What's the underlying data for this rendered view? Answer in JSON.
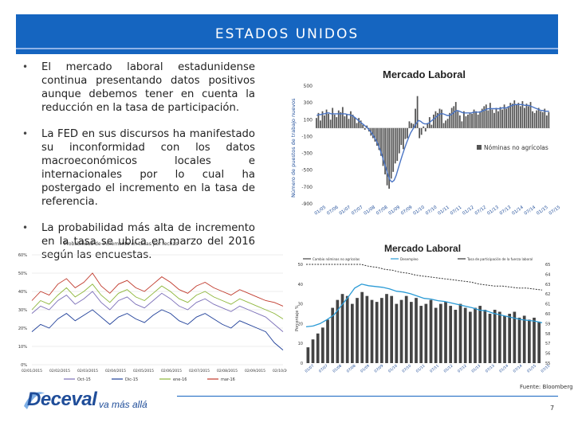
{
  "header": {
    "title": "ESTADOS UNIDOS"
  },
  "bullets": [
    "El mercado laboral estadunidense continua presentando datos positivos aunque debemos tener en cuenta la reducción en la tasa de participación.",
    "La FED en sus discursos ha manifestado su inconformidad con los datos macroeconómicos locales e internacionales por lo cual ha postergado el incremento en la tasa de referencia.",
    "La probabilidad más alta de incremento en la tasa se ubica en marzo del 2016 según las encuestas."
  ],
  "bullet_marker": "•",
  "colors": {
    "banner": "#1565c0",
    "logo": "#1f4d99",
    "bars": "#555555",
    "line": "#4a74c4"
  },
  "chart_data": [
    {
      "type": "bar",
      "title": "Mercado Laboral",
      "ylabel": "Número de puestos de trabajo nuevos",
      "legend": "Nóminas no agrícolas",
      "yticks": [
        "500",
        "300",
        "100",
        "-100",
        "-300",
        "-500",
        "-700",
        "-900"
      ],
      "ylim": [
        -900,
        500
      ],
      "xticks": [
        "01/05",
        "07/06",
        "01/07",
        "07/07",
        "01/08",
        "07/08",
        "01/09",
        "07/09",
        "01/10",
        "07/10",
        "01/11",
        "07/11",
        "01/12",
        "07/12",
        "01/13",
        "07/13",
        "01/14",
        "07/14",
        "01/15",
        "07/15"
      ],
      "series": [
        {
          "name": "Nóminas no agrícolas",
          "values": [
            120,
            180,
            90,
            200,
            150,
            220,
            170,
            100,
            240,
            160,
            130,
            210,
            190,
            250,
            140,
            170,
            110,
            200,
            160,
            130,
            60,
            120,
            90,
            40,
            -20,
            30,
            -40,
            -90,
            -120,
            -160,
            -210,
            -260,
            -330,
            -450,
            -550,
            -680,
            -720,
            -600,
            -520,
            -420,
            -390,
            -300,
            -200,
            -250,
            -130,
            -120,
            80,
            60,
            50,
            230,
            380,
            -120,
            -80,
            20,
            -40,
            60,
            130,
            40,
            160,
            200,
            180,
            230,
            220,
            60,
            90,
            110,
            180,
            240,
            260,
            310,
            200,
            150,
            80,
            200,
            140,
            160,
            180,
            170,
            220,
            200,
            160,
            200,
            230,
            260,
            280,
            210,
            300,
            220,
            180,
            240,
            200,
            250,
            220,
            280,
            230,
            260,
            300,
            290,
            330,
            280,
            300,
            260,
            320,
            240,
            290,
            260,
            310,
            200,
            180,
            210,
            240,
            200,
            190,
            230,
            150,
            190
          ]
        },
        {
          "name": "Tendencia",
          "values": [
            150,
            160,
            160,
            170,
            170,
            180,
            180,
            170,
            170,
            170,
            170,
            170,
            170,
            170,
            170,
            160,
            160,
            150,
            140,
            120,
            100,
            80,
            60,
            40,
            20,
            0,
            -30,
            -60,
            -100,
            -140,
            -190,
            -250,
            -320,
            -400,
            -480,
            -560,
            -620,
            -640,
            -620,
            -560,
            -480,
            -400,
            -320,
            -250,
            -180,
            -120,
            -60,
            -20,
            20,
            60,
            90,
            80,
            60,
            50,
            50,
            60,
            80,
            100,
            120,
            140,
            160,
            170,
            170,
            160,
            150,
            150,
            160,
            180,
            200,
            210,
            200,
            190,
            180,
            180,
            180,
            180,
            180,
            190,
            190,
            190,
            190,
            200,
            210,
            220,
            230,
            230,
            230,
            230,
            230,
            230,
            230,
            240,
            240,
            240,
            250,
            260,
            270,
            280,
            280,
            280,
            280,
            280,
            270,
            270,
            270,
            260,
            250,
            240,
            230,
            220,
            210,
            210,
            200,
            200,
            200
          ]
        }
      ]
    },
    {
      "type": "line",
      "title": "Probabilidad de incremento en tasas por fechas",
      "ylim": [
        0,
        60
      ],
      "yticks": [
        "60%",
        "50%",
        "40%",
        "30%",
        "20%",
        "10%",
        "0%"
      ],
      "xticks": [
        "02/01/2015",
        "02/02/2015",
        "02/03/2015",
        "02/04/2015",
        "02/05/2015",
        "02/06/2015",
        "02/07/2015",
        "02/08/2015",
        "02/09/2015",
        "02/10/2015"
      ],
      "legend": [
        "Oct-15",
        "Dic-15",
        "ene-16",
        "mar-16"
      ],
      "series_colors": [
        "#7b6fb8",
        "#1f3f99",
        "#8db63a",
        "#c0392b"
      ],
      "series": [
        {
          "name": "Oct-15",
          "values": [
            28,
            32,
            30,
            35,
            38,
            33,
            36,
            40,
            34,
            30,
            35,
            37,
            33,
            31,
            35,
            39,
            36,
            32,
            30,
            34,
            36,
            33,
            31,
            29,
            32,
            30,
            28,
            26,
            22,
            18
          ]
        },
        {
          "name": "Dic-15",
          "values": [
            18,
            22,
            20,
            25,
            28,
            24,
            27,
            30,
            26,
            22,
            26,
            28,
            25,
            23,
            27,
            30,
            28,
            24,
            22,
            26,
            28,
            25,
            22,
            20,
            24,
            22,
            20,
            18,
            12,
            8
          ]
        },
        {
          "name": "ene-16",
          "values": [
            30,
            35,
            33,
            38,
            42,
            37,
            40,
            44,
            38,
            34,
            39,
            41,
            37,
            35,
            39,
            43,
            40,
            36,
            34,
            38,
            40,
            37,
            35,
            33,
            36,
            34,
            32,
            30,
            28,
            25
          ]
        },
        {
          "name": "mar-16",
          "values": [
            35,
            40,
            38,
            44,
            47,
            42,
            45,
            50,
            43,
            39,
            44,
            46,
            42,
            40,
            44,
            48,
            45,
            41,
            39,
            43,
            45,
            42,
            40,
            38,
            41,
            39,
            37,
            35,
            34,
            32
          ]
        }
      ]
    },
    {
      "type": "bar",
      "title": "Mercado Laboral",
      "ylabel": "Porcentaje %",
      "legend": [
        "Cambio nóminas no agrícolas",
        "Desempleo",
        "Tasa de participación de la fuerza laboral"
      ],
      "yticks_left": [
        "50",
        "40",
        "30",
        "20",
        "10",
        "0"
      ],
      "yticks_right": [
        "65",
        "64",
        "63",
        "62",
        "61",
        "60",
        "59",
        "58",
        "57",
        "56",
        "55"
      ],
      "xticks": [
        "01/07",
        "07/07",
        "01/08",
        "07/08",
        "01/09",
        "07/09",
        "01/10",
        "07/10",
        "01/11",
        "07/11",
        "01/12",
        "07/12",
        "01/13",
        "07/13",
        "01/14",
        "07/14",
        "01/15",
        "07/15"
      ],
      "series": [
        {
          "name": "Cambio nóminas no agrícolas",
          "values": [
            8,
            12,
            15,
            18,
            22,
            28,
            32,
            35,
            34,
            30,
            33,
            36,
            34,
            32,
            31,
            33,
            35,
            34,
            30,
            32,
            34,
            31,
            33,
            29,
            30,
            32,
            28,
            30,
            31,
            29,
            27,
            30,
            28,
            26,
            28,
            29,
            27,
            25,
            27,
            26,
            24,
            25,
            26,
            23,
            24,
            22,
            23,
            21
          ]
        },
        {
          "name": "Desempleo",
          "values": [
            4.6,
            4.7,
            5.0,
            5.5,
            6.1,
            7.2,
            8.3,
            9.5,
            10.0,
            9.8,
            9.7,
            9.6,
            9.4,
            9.1,
            9.0,
            8.8,
            8.5,
            8.2,
            8.1,
            7.9,
            7.8,
            7.6,
            7.4,
            7.2,
            7.0,
            6.7,
            6.6,
            6.3,
            6.1,
            5.9,
            5.7,
            5.5,
            5.4,
            5.3,
            5.1
          ]
        },
        {
          "name": "Tasa de participación de la fuerza laboral",
          "values": [
            66.2,
            66.1,
            66.0,
            65.9,
            65.8,
            65.7,
            65.4,
            65.0,
            64.8,
            64.7,
            64.5,
            64.4,
            64.2,
            64.1,
            63.9,
            63.8,
            63.7,
            63.6,
            63.5,
            63.4,
            63.3,
            63.2,
            63.0,
            62.9,
            62.8,
            62.8,
            62.7,
            62.6,
            62.6,
            62.5,
            62.4
          ]
        }
      ]
    }
  ],
  "source": "Fuente: Bloomberg",
  "page_number": "7",
  "logo": {
    "name": "Deceval",
    "tagline": "va más allá"
  }
}
